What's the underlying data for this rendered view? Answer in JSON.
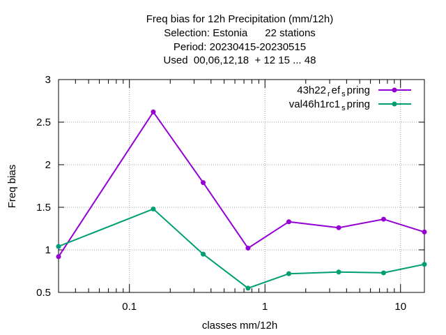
{
  "chart_data": {
    "type": "line",
    "title_lines": [
      "Freq bias  for 12h Precipitation (mm/12h)",
      "Selection: Estonia      22 stations",
      "Period: 20230415-20230515",
      "Used  00,06,12,18  + 12 15 ... 48"
    ],
    "xlabel": "classes mm/12h",
    "ylabel": "Freq bias",
    "x_scale": "log",
    "xlim": [
      0.03,
      15
    ],
    "ylim": [
      0.5,
      3
    ],
    "xticks": [
      {
        "value": 0.1,
        "label": "0.1"
      },
      {
        "value": 1,
        "label": "1"
      },
      {
        "value": 10,
        "label": "10"
      }
    ],
    "yticks": [
      {
        "value": 0.5,
        "label": "0.5"
      },
      {
        "value": 1,
        "label": "1"
      },
      {
        "value": 1.5,
        "label": "1.5"
      },
      {
        "value": 2,
        "label": "2"
      },
      {
        "value": 2.5,
        "label": "2.5"
      },
      {
        "value": 3,
        "label": "3"
      }
    ],
    "grid": true,
    "legend_position": "top-right",
    "x": [
      0.03,
      0.15,
      0.35,
      0.75,
      1.5,
      3.5,
      7.5,
      15
    ],
    "series": [
      {
        "name_parts": [
          "43h22",
          "r",
          "ef",
          "s",
          "pring"
        ],
        "color": "#9400d3",
        "values": [
          0.92,
          2.62,
          1.79,
          1.02,
          1.33,
          1.26,
          1.36,
          1.21
        ]
      },
      {
        "name_parts": [
          "val46h1rc1",
          "s",
          "pring"
        ],
        "color": "#009e73",
        "values": [
          1.04,
          1.48,
          0.95,
          0.55,
          0.72,
          0.74,
          0.73,
          0.83
        ]
      }
    ]
  }
}
